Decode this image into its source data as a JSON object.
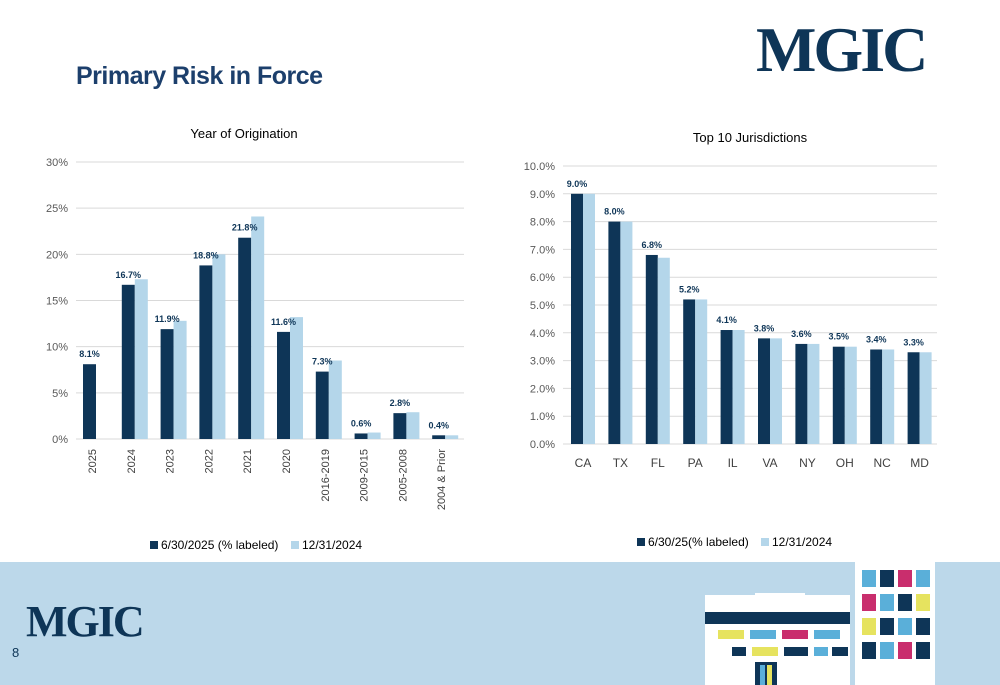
{
  "header": {
    "title": "Primary Risk in Force",
    "logo_text": "MGIC"
  },
  "footer": {
    "logo_text": "MGIC",
    "page_number": "8"
  },
  "colors": {
    "dark": "#0e3557",
    "light": "#b4d6ea",
    "title": "#1c3f6c",
    "footer": "#bcd8ea"
  },
  "chart_data": [
    {
      "type": "bar",
      "title": "Year of Origination",
      "categories": [
        "2025",
        "2024",
        "2023",
        "2022",
        "2021",
        "2020",
        "2016-2019",
        "2009-2015",
        "2005-2008",
        "2004 & Prior"
      ],
      "series": [
        {
          "name": "6/30/2025 (% labeled)",
          "values": [
            8.1,
            16.7,
            11.9,
            18.8,
            21.8,
            11.6,
            7.3,
            0.6,
            2.8,
            0.4
          ]
        },
        {
          "name": "12/31/2024",
          "values": [
            0,
            17.3,
            12.8,
            20.0,
            24.1,
            13.2,
            8.5,
            0.7,
            2.9,
            0.4
          ]
        }
      ],
      "data_labels": [
        "8.1%",
        "16.7%",
        "11.9%",
        "18.8%",
        "21.8%",
        "11.6%",
        "7.3%",
        "0.6%",
        "2.8%",
        "0.4%"
      ],
      "y_ticks": [
        "0%",
        "5%",
        "10%",
        "15%",
        "20%",
        "25%",
        "30%"
      ],
      "ylim": [
        0,
        30
      ],
      "grid": true,
      "legend": "bottom",
      "xlabel_rotation": "vertical"
    },
    {
      "type": "bar",
      "title": "Top 10 Jurisdictions",
      "categories": [
        "CA",
        "TX",
        "FL",
        "PA",
        "IL",
        "VA",
        "NY",
        "OH",
        "NC",
        "MD"
      ],
      "series": [
        {
          "name": "6/30/25(% labeled)",
          "values": [
            9.0,
            8.0,
            6.8,
            5.2,
            4.1,
            3.8,
            3.6,
            3.5,
            3.4,
            3.3
          ]
        },
        {
          "name": "12/31/2024",
          "values": [
            9.0,
            8.0,
            6.7,
            5.2,
            4.1,
            3.8,
            3.6,
            3.5,
            3.4,
            3.3
          ]
        }
      ],
      "data_labels": [
        "9.0%",
        "8.0%",
        "6.8%",
        "5.2%",
        "4.1%",
        "3.8%",
        "3.6%",
        "3.5%",
        "3.4%",
        "3.3%"
      ],
      "y_ticks": [
        "0.0%",
        "1.0%",
        "2.0%",
        "3.0%",
        "4.0%",
        "5.0%",
        "6.0%",
        "7.0%",
        "8.0%",
        "9.0%",
        "10.0%"
      ],
      "ylim": [
        0,
        10
      ],
      "grid": true,
      "legend": "bottom",
      "xlabel_rotation": "horizontal"
    }
  ]
}
